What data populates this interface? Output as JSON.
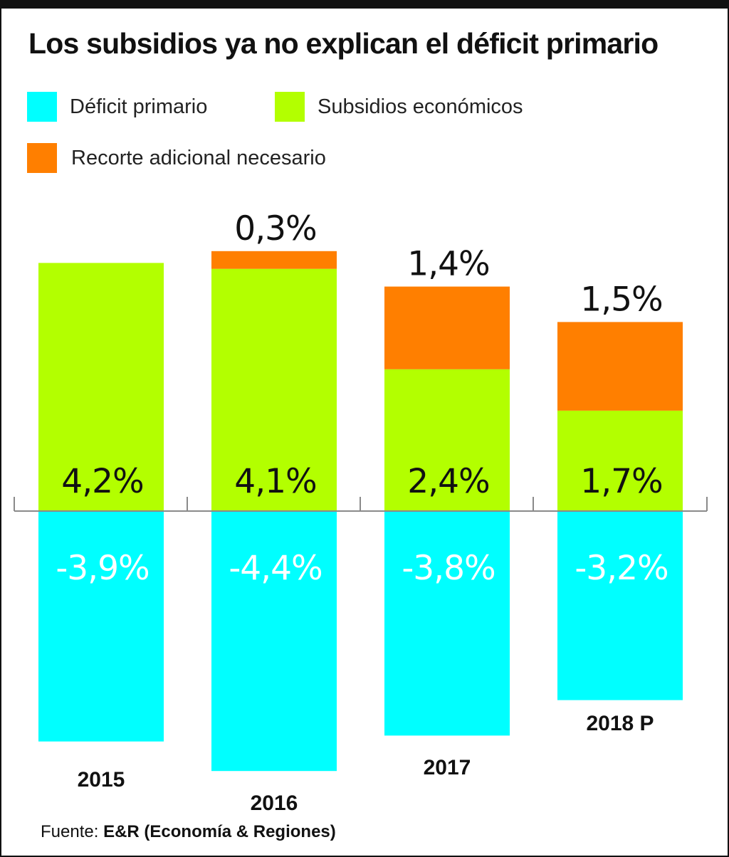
{
  "title": "Los subsidios ya no explican el déficit primario",
  "legend": [
    {
      "label": "Déficit primario",
      "color": "#00FFFF"
    },
    {
      "label": "Subsidios económicos",
      "color": "#B3FF00"
    },
    {
      "label": "Recorte adicional necesario",
      "color": "#FF7F00"
    }
  ],
  "source": {
    "prefix": "Fuente:",
    "name": "E&R (Economía & Regiones)"
  },
  "chart_data": {
    "type": "bar",
    "stacked": true,
    "categories": [
      "2015",
      "2016",
      "2017",
      "2018 P"
    ],
    "series": [
      {
        "name": "Déficit primario",
        "color": "#00FFFF",
        "values": [
          -3.9,
          -4.4,
          -3.8,
          -3.2
        ],
        "labels": [
          "-3,9%",
          "-4,4%",
          "-3,8%",
          "-3,2%"
        ]
      },
      {
        "name": "Subsidios económicos",
        "color": "#B3FF00",
        "values": [
          4.2,
          4.1,
          2.4,
          1.7
        ],
        "labels": [
          "4,2%",
          "4,1%",
          "2,4%",
          "1,7%"
        ]
      },
      {
        "name": "Recorte adicional necesario",
        "color": "#FF7F00",
        "values": [
          0,
          0.3,
          1.4,
          1.5
        ],
        "labels": [
          "",
          "0,3%",
          "1,4%",
          "1,5%"
        ]
      }
    ],
    "grid": false,
    "legend_position": "top-left"
  }
}
